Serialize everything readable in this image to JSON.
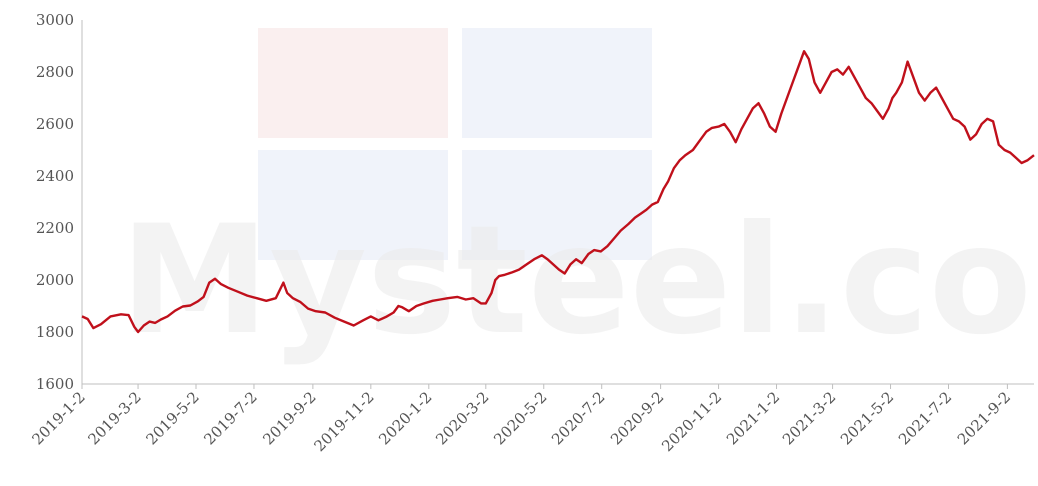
{
  "chart_data": {
    "type": "line",
    "title": "",
    "xlabel": "",
    "ylabel": "",
    "ylim": [
      1600,
      3000
    ],
    "yticks": [
      1600,
      1800,
      2000,
      2200,
      2400,
      2600,
      2800,
      3000
    ],
    "xlim": [
      "2019-01-02",
      "2021-09-30"
    ],
    "xticks": [
      "2019-1-2",
      "2019-3-2",
      "2019-5-2",
      "2019-7-2",
      "2019-9-2",
      "2019-11-2",
      "2020-1-2",
      "2020-3-2",
      "2020-5-2",
      "2020-7-2",
      "2020-9-2",
      "2020-11-2",
      "2021-1-2",
      "2021-3-2",
      "2021-5-2",
      "2021-7-2",
      "2021-9-2"
    ],
    "grid": false,
    "legend": "none",
    "series_color": "#c0101b",
    "series": [
      {
        "x": [
          "2019-01-02",
          "2019-01-08",
          "2019-01-14",
          "2019-01-22",
          "2019-02-01",
          "2019-02-12",
          "2019-02-20",
          "2019-02-26",
          "2019-03-02",
          "2019-03-08",
          "2019-03-14",
          "2019-03-20",
          "2019-03-26",
          "2019-04-02",
          "2019-04-10",
          "2019-04-18",
          "2019-04-26",
          "2019-05-04",
          "2019-05-10",
          "2019-05-16",
          "2019-05-22",
          "2019-05-28",
          "2019-06-05",
          "2019-06-15",
          "2019-06-25",
          "2019-07-05",
          "2019-07-15",
          "2019-07-25",
          "2019-08-02",
          "2019-08-06",
          "2019-08-12",
          "2019-08-20",
          "2019-08-28",
          "2019-09-05",
          "2019-09-15",
          "2019-09-25",
          "2019-10-05",
          "2019-10-15",
          "2019-10-25",
          "2019-11-02",
          "2019-11-10",
          "2019-11-18",
          "2019-11-26",
          "2019-12-01",
          "2019-12-05",
          "2019-12-12",
          "2019-12-20",
          "2019-12-28",
          "2020-01-06",
          "2020-01-14",
          "2020-01-22",
          "2020-02-01",
          "2020-02-10",
          "2020-02-18",
          "2020-02-26",
          "2020-03-02",
          "2020-03-08",
          "2020-03-12",
          "2020-03-16",
          "2020-03-22",
          "2020-03-30",
          "2020-04-06",
          "2020-04-14",
          "2020-04-22",
          "2020-04-30",
          "2020-05-06",
          "2020-05-12",
          "2020-05-18",
          "2020-05-24",
          "2020-05-30",
          "2020-06-05",
          "2020-06-11",
          "2020-06-18",
          "2020-06-24",
          "2020-07-01",
          "2020-07-08",
          "2020-07-15",
          "2020-07-22",
          "2020-07-30",
          "2020-08-06",
          "2020-08-12",
          "2020-08-18",
          "2020-08-24",
          "2020-08-30",
          "2020-09-05",
          "2020-09-10",
          "2020-09-16",
          "2020-09-22",
          "2020-09-28",
          "2020-10-06",
          "2020-10-14",
          "2020-10-20",
          "2020-10-26",
          "2020-11-02",
          "2020-11-08",
          "2020-11-14",
          "2020-11-20",
          "2020-11-26",
          "2020-12-02",
          "2020-12-08",
          "2020-12-14",
          "2020-12-20",
          "2020-12-26",
          "2021-01-01",
          "2021-01-07",
          "2021-01-13",
          "2021-01-19",
          "2021-01-25",
          "2021-01-31",
          "2021-02-05",
          "2021-02-11",
          "2021-02-17",
          "2021-02-23",
          "2021-03-01",
          "2021-03-07",
          "2021-03-13",
          "2021-03-19",
          "2021-03-25",
          "2021-03-31",
          "2021-04-06",
          "2021-04-12",
          "2021-04-18",
          "2021-04-24",
          "2021-04-30",
          "2021-05-04",
          "2021-05-08",
          "2021-05-14",
          "2021-05-20",
          "2021-05-26",
          "2021-06-01",
          "2021-06-07",
          "2021-06-13",
          "2021-06-19",
          "2021-06-25",
          "2021-07-01",
          "2021-07-07",
          "2021-07-13",
          "2021-07-19",
          "2021-07-25",
          "2021-07-31",
          "2021-08-06",
          "2021-08-12",
          "2021-08-18",
          "2021-08-24",
          "2021-08-30",
          "2021-09-05",
          "2021-09-11",
          "2021-09-17",
          "2021-09-23",
          "2021-09-30"
        ],
        "y": [
          1860,
          1850,
          1815,
          1830,
          1860,
          1868,
          1865,
          1820,
          1800,
          1825,
          1840,
          1835,
          1848,
          1860,
          1882,
          1898,
          1902,
          1918,
          1935,
          1990,
          2005,
          1985,
          1970,
          1955,
          1940,
          1930,
          1920,
          1930,
          1990,
          1950,
          1930,
          1915,
          1890,
          1880,
          1875,
          1855,
          1840,
          1825,
          1845,
          1860,
          1845,
          1858,
          1875,
          1900,
          1895,
          1880,
          1900,
          1910,
          1920,
          1925,
          1930,
          1935,
          1925,
          1930,
          1910,
          1910,
          1950,
          2000,
          2015,
          2020,
          2030,
          2040,
          2060,
          2080,
          2095,
          2080,
          2060,
          2040,
          2025,
          2060,
          2080,
          2065,
          2100,
          2115,
          2110,
          2130,
          2160,
          2190,
          2215,
          2240,
          2255,
          2270,
          2290,
          2300,
          2350,
          2380,
          2430,
          2460,
          2480,
          2500,
          2540,
          2570,
          2585,
          2590,
          2600,
          2570,
          2530,
          2580,
          2620,
          2660,
          2680,
          2640,
          2590,
          2570,
          2640,
          2700,
          2760,
          2820,
          2880,
          2850,
          2760,
          2720,
          2760,
          2800,
          2810,
          2790,
          2820,
          2780,
          2740,
          2700,
          2680,
          2650,
          2620,
          2660,
          2700,
          2720,
          2760,
          2840,
          2780,
          2720,
          2690,
          2720,
          2740,
          2700,
          2660,
          2620,
          2610,
          2590,
          2540,
          2560,
          2600,
          2620,
          2610,
          2520,
          2500,
          2490,
          2470,
          2450,
          2460,
          2480
        ]
      }
    ]
  }
}
